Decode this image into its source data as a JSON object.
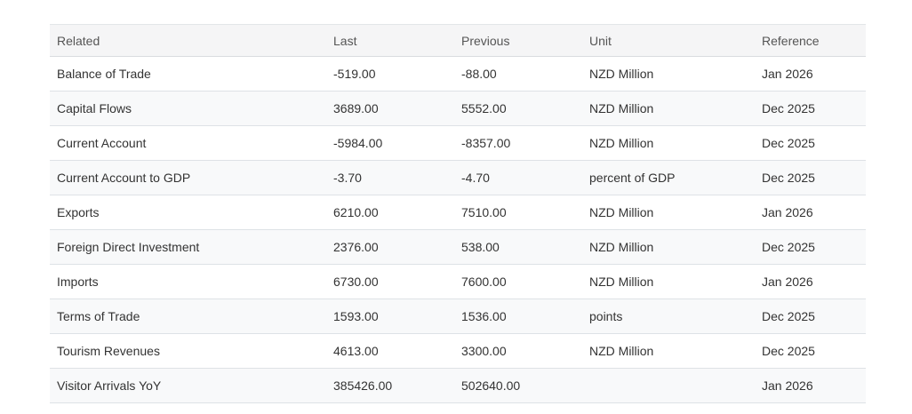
{
  "table": {
    "columns": [
      {
        "key": "related",
        "label": "Related"
      },
      {
        "key": "last",
        "label": "Last"
      },
      {
        "key": "previous",
        "label": "Previous"
      },
      {
        "key": "unit",
        "label": "Unit"
      },
      {
        "key": "reference",
        "label": "Reference"
      }
    ],
    "rows": [
      [
        "Balance of Trade",
        "-519.00",
        "-88.00",
        "NZD Million",
        "Jan 2026"
      ],
      [
        "Capital Flows",
        "3689.00",
        "5552.00",
        "NZD Million",
        "Dec 2025"
      ],
      [
        "Current Account",
        "-5984.00",
        "-8357.00",
        "NZD Million",
        "Dec 2025"
      ],
      [
        "Current Account to GDP",
        "-3.70",
        "-4.70",
        "percent of GDP",
        "Dec 2025"
      ],
      [
        "Exports",
        "6210.00",
        "7510.00",
        "NZD Million",
        "Jan 2026"
      ],
      [
        "Foreign Direct Investment",
        "2376.00",
        "538.00",
        "NZD Million",
        "Dec 2025"
      ],
      [
        "Imports",
        "6730.00",
        "7600.00",
        "NZD Million",
        "Jan 2026"
      ],
      [
        "Terms of Trade",
        "1593.00",
        "1536.00",
        "points",
        "Dec 2025"
      ],
      [
        "Tourism Revenues",
        "4613.00",
        "3300.00",
        "NZD Million",
        "Dec 2025"
      ],
      [
        "Visitor Arrivals YoY",
        "385426.00",
        "502640.00",
        "",
        "Jan 2026"
      ]
    ]
  },
  "colors": {
    "header_bg": "#f5f5f6",
    "stripe_bg": "#f8f9fa",
    "row_border": "#dee2e6",
    "header_text": "#555555",
    "body_text": "#333333",
    "page_bg": "#ffffff"
  }
}
